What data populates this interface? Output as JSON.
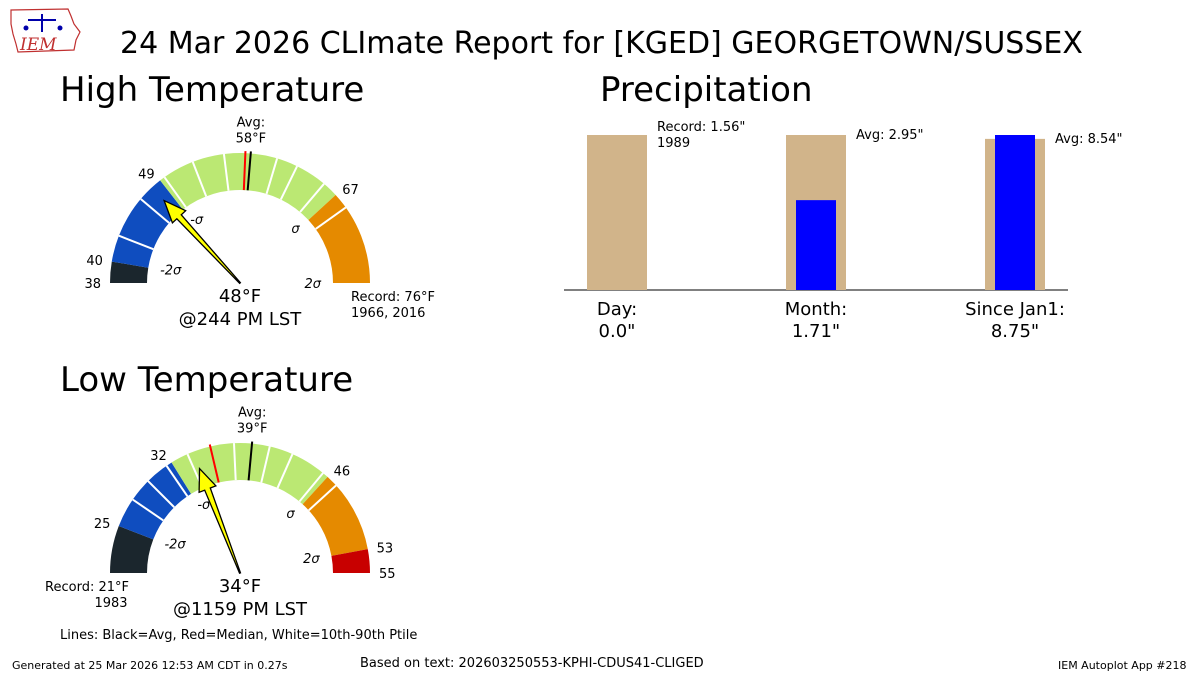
{
  "title": "24 Mar 2026 CLImate Report for [KGED] GEORGETOWN/SUSSEX",
  "logo": {
    "text": "IEM",
    "icon": "iowa-weather-logo-icon"
  },
  "colors": {
    "record_low": "#1b262d",
    "below_2sigma": "#0f4dbf",
    "normal": "#bbe873",
    "above": "#e58a00",
    "record_high": "#c80000",
    "needle": "#ffff00",
    "precip_bar": "#d1b48a",
    "precip_obs": "#0000ff",
    "avg_line": "#000000",
    "median_line": "#ff0000"
  },
  "chart_data": [
    {
      "type": "gauge",
      "name": "high",
      "title": "High Temperature",
      "range": [
        38,
        76
      ],
      "tick_labels": [
        {
          "value": 38,
          "text": "38"
        },
        {
          "value": 40,
          "text": "40"
        },
        {
          "value": 49,
          "text": "49"
        },
        {
          "value": 67,
          "text": "67"
        }
      ],
      "sigma_labels": [
        {
          "value": 40,
          "text": "-2σ"
        },
        {
          "value": 49,
          "text": "-σ"
        },
        {
          "value": 67,
          "text": "σ"
        },
        {
          "value": 76,
          "text": "2σ"
        }
      ],
      "bands": [
        {
          "from": 38,
          "to": 40,
          "color": "#1b262d"
        },
        {
          "from": 40,
          "to": 49,
          "color": "#0f4dbf"
        },
        {
          "from": 49,
          "to": 67,
          "color": "#bbe873"
        },
        {
          "from": 67,
          "to": 76,
          "color": "#e58a00"
        }
      ],
      "percentile_lines": [
        42.5,
        46.5,
        49.5,
        52.5,
        55.5,
        60.5,
        62.5,
        65.5,
        68.5
      ],
      "avg": 58,
      "median": 57.5,
      "avg_label": "Avg:",
      "avg_value": "58°F",
      "observed": 48,
      "observed_label": "48°F",
      "time_label": "@244 PM LST",
      "record_text": "Record: 76°F",
      "record_years": "1966, 2016",
      "record_side": "right"
    },
    {
      "type": "gauge",
      "name": "low",
      "title": "Low Temperature",
      "range": [
        21,
        55
      ],
      "tick_labels": [
        {
          "value": 25,
          "text": "25"
        },
        {
          "value": 32,
          "text": "32"
        },
        {
          "value": 46,
          "text": "46"
        },
        {
          "value": 53,
          "text": "53"
        },
        {
          "value": 55,
          "text": "55"
        }
      ],
      "sigma_labels": [
        {
          "value": 25,
          "text": "-2σ"
        },
        {
          "value": 32,
          "text": "-σ"
        },
        {
          "value": 46,
          "text": "σ"
        },
        {
          "value": 53,
          "text": "2σ"
        }
      ],
      "bands": [
        {
          "from": 21,
          "to": 25,
          "color": "#1b262d"
        },
        {
          "from": 25,
          "to": 32,
          "color": "#0f4dbf"
        },
        {
          "from": 32,
          "to": 46,
          "color": "#bbe873"
        },
        {
          "from": 46,
          "to": 53,
          "color": "#e58a00"
        },
        {
          "from": 53,
          "to": 55,
          "color": "#c80000"
        }
      ],
      "percentile_lines": [
        27.5,
        29.5,
        31.5,
        33.5,
        37.5,
        40.5,
        42.5,
        45.5,
        47
      ],
      "avg": 39,
      "median": 35.5,
      "avg_label": "Avg:",
      "avg_value": "39°F",
      "observed": 34,
      "observed_label": "34°F",
      "time_label": "@1159 PM LST",
      "record_text": "Record: 21°F",
      "record_years": "1983",
      "record_side": "left"
    },
    {
      "type": "bar",
      "name": "precipitation",
      "title": "Precipitation",
      "ylim": [
        0,
        1.56
      ],
      "categories": [
        {
          "label": "Day:",
          "value_text": "0.0\"",
          "observed": 0.0,
          "reference": 1.56,
          "reference_scale": 1.56,
          "note_line1": "Record: 1.56\"",
          "note_line2": "1989"
        },
        {
          "label": "Month:",
          "value_text": "1.71\"",
          "observed": 1.71,
          "reference": 2.95,
          "reference_scale": 2.95,
          "note_line1": "Avg: 2.95\"",
          "note_line2": ""
        },
        {
          "label": "Since Jan1:",
          "value_text": "8.75\"",
          "observed": 8.75,
          "reference": 8.54,
          "reference_scale": 8.54,
          "note_line1": "Avg: 8.54\"",
          "note_line2": ""
        }
      ]
    }
  ],
  "legend_note": "Lines: Black=Avg, Red=Median, White=10th-90th Ptile",
  "footer": {
    "generated": "Generated at 25 Mar 2026 12:53 AM CDT in 0.27s",
    "source": "Based on text: 202603250553-KPHI-CDUS41-CLIGED",
    "app": "IEM Autoplot App #218"
  }
}
